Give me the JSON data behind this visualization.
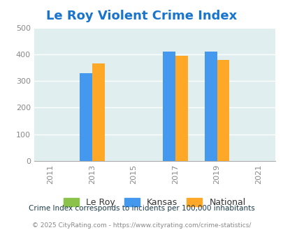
{
  "title": "Le Roy Violent Crime Index",
  "title_color": "#1874CD",
  "years": [
    2011,
    2013,
    2015,
    2017,
    2019,
    2021
  ],
  "bar_years": [
    2013,
    2017,
    2019
  ],
  "leroy_values": [
    0,
    0,
    0
  ],
  "kansas_values": [
    330,
    410,
    410
  ],
  "national_values": [
    365,
    395,
    380
  ],
  "leroy_color": "#8BC34A",
  "kansas_color": "#4499EE",
  "national_color": "#FFA726",
  "bg_color": "#E0EEF0",
  "ylim": [
    0,
    500
  ],
  "yticks": [
    0,
    100,
    200,
    300,
    400,
    500
  ],
  "bar_width": 0.6,
  "legend_labels": [
    "Le Roy",
    "Kansas",
    "National"
  ],
  "note": "Crime Index corresponds to incidents per 100,000 inhabitants",
  "footer": "© 2025 CityRating.com - https://www.cityrating.com/crime-statistics/",
  "note_color": "#1a3a4a",
  "footer_color": "#888888",
  "footer_url_color": "#4499EE"
}
